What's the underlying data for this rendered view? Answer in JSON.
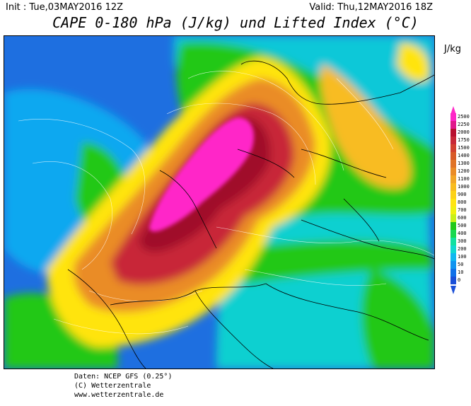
{
  "header": {
    "init": "Init : Tue,03MAY2016 12Z",
    "valid": "Valid: Thu,12MAY2016 18Z",
    "title": "CAPE 0-180 hPa (J/kg) und Lifted Index (°C)"
  },
  "legend": {
    "unit": "J/kg",
    "levels": [
      {
        "label": "2500",
        "color": "#ff26c8"
      },
      {
        "label": "2250",
        "color": "#e0188c"
      },
      {
        "label": "2000",
        "color": "#b81030"
      },
      {
        "label": "1750",
        "color": "#c82838"
      },
      {
        "label": "1500",
        "color": "#d24030"
      },
      {
        "label": "1400",
        "color": "#d85a28"
      },
      {
        "label": "1300",
        "color": "#e07428"
      },
      {
        "label": "1200",
        "color": "#ea8c28"
      },
      {
        "label": "1100",
        "color": "#f2a628"
      },
      {
        "label": "1000",
        "color": "#f8bc20"
      },
      {
        "label": "900",
        "color": "#fcd218"
      },
      {
        "label": "800",
        "color": "#ffe410"
      },
      {
        "label": "700",
        "color": "#f0f010"
      },
      {
        "label": "600",
        "color": "#c8f018"
      },
      {
        "label": "500",
        "color": "#22c818"
      },
      {
        "label": "400",
        "color": "#18d850"
      },
      {
        "label": "300",
        "color": "#10e0a0"
      },
      {
        "label": "200",
        "color": "#10d8d0"
      },
      {
        "label": "100",
        "color": "#10b8f0"
      },
      {
        "label": "50",
        "color": "#1094f0"
      },
      {
        "label": "10",
        "color": "#1070e8"
      },
      {
        "label": "0",
        "color": "#1a4fd8"
      }
    ]
  },
  "footer": {
    "line1": "Daten: NCEP GFS (0.25°)",
    "line2": "(C) Wetterzentrale",
    "line3": "www.wetterzentrale.de"
  }
}
